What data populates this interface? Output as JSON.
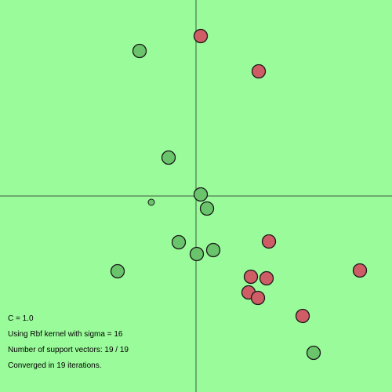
{
  "colors": {
    "background": "#9afb9a",
    "axis": "#5e8f5e",
    "class_positive": "#ce5d65",
    "class_negative": "#6ac46c",
    "outline": "#1a1a1a"
  },
  "chart_data": {
    "type": "scatter",
    "xlim": [
      -250,
      250
    ],
    "ylim": [
      -250,
      250
    ],
    "grid": false,
    "series": [
      {
        "points": [
          {
            "x": 6,
            "y": 204
          },
          {
            "x": 80,
            "y": 159
          },
          {
            "x": 93,
            "y": -58
          },
          {
            "x": 70,
            "y": -103
          },
          {
            "x": 90,
            "y": -105
          },
          {
            "x": 67,
            "y": -123
          },
          {
            "x": 79,
            "y": -130
          },
          {
            "x": 136,
            "y": -153
          },
          {
            "x": 209,
            "y": -95
          }
        ]
      },
      {
        "points": [
          {
            "x": -72,
            "y": 185
          },
          {
            "x": -35,
            "y": 49
          },
          {
            "x": 6,
            "y": 2
          },
          {
            "x": 14,
            "y": -16
          },
          {
            "x": -57,
            "y": -8,
            "small": true
          },
          {
            "x": -22,
            "y": -59
          },
          {
            "x": 22,
            "y": -69
          },
          {
            "x": 1,
            "y": -74
          },
          {
            "x": -100,
            "y": -96
          },
          {
            "x": 150,
            "y": -200
          }
        ]
      }
    ]
  },
  "info": {
    "c_value": "C = 1.0",
    "kernel": "Using Rbf kernel with sigma = 16",
    "support_vectors": "Number of support vectors: 19 / 19",
    "converged": "Converged in 19 iterations."
  }
}
